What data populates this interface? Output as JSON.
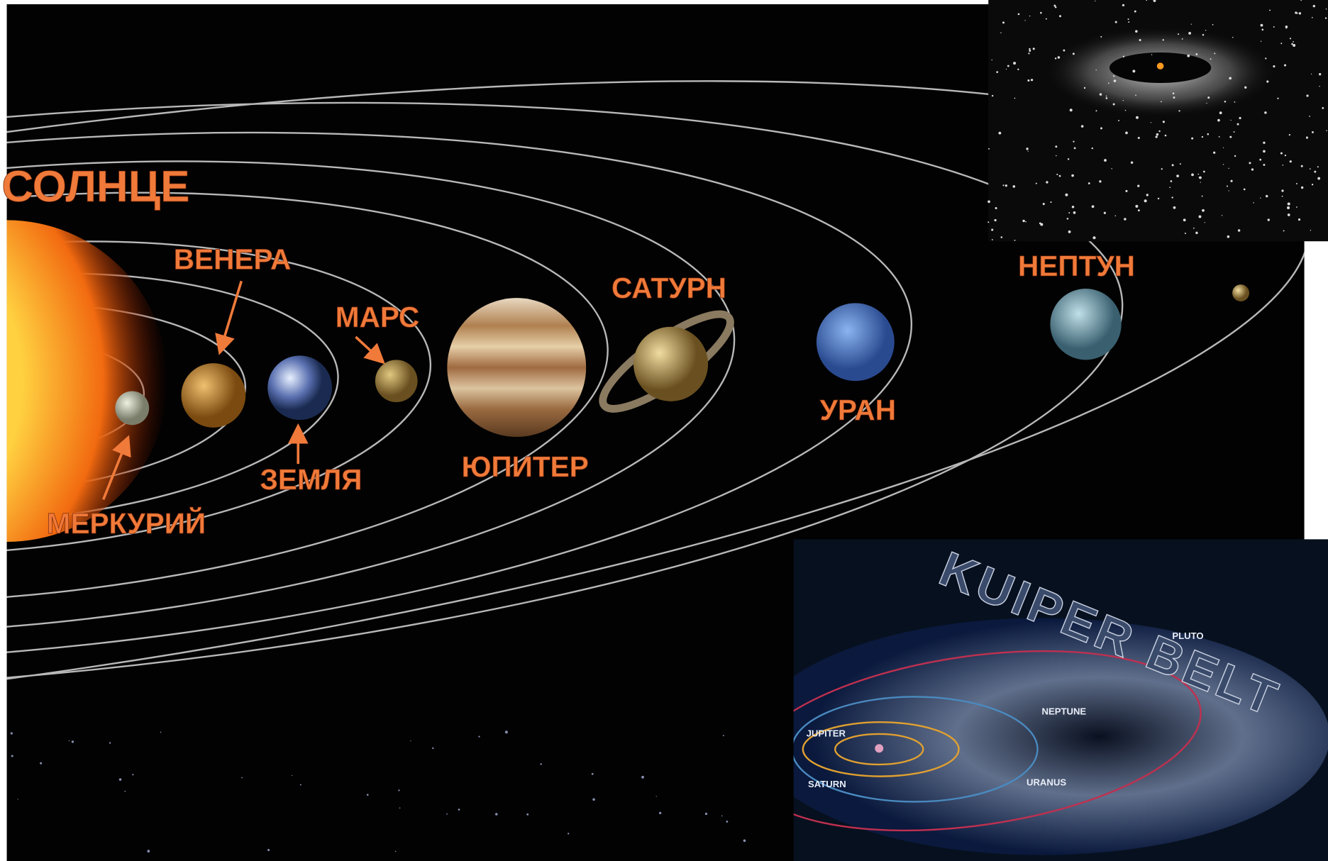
{
  "main": {
    "sun": "СОЛНЦЕ",
    "planets": [
      "МЕРКУРИЙ",
      "ВЕНЕРА",
      "ЗЕМЛЯ",
      "МАРС",
      "ЮПИТЕР",
      "САТУРН",
      "УРАН",
      "НЕПТУН"
    ]
  },
  "kuiper_inset": {
    "title": "KUIPER BELT",
    "labels": [
      "PLUTO",
      "NEPTUNE",
      "JUPITER",
      "SATURN",
      "URANUS"
    ]
  }
}
